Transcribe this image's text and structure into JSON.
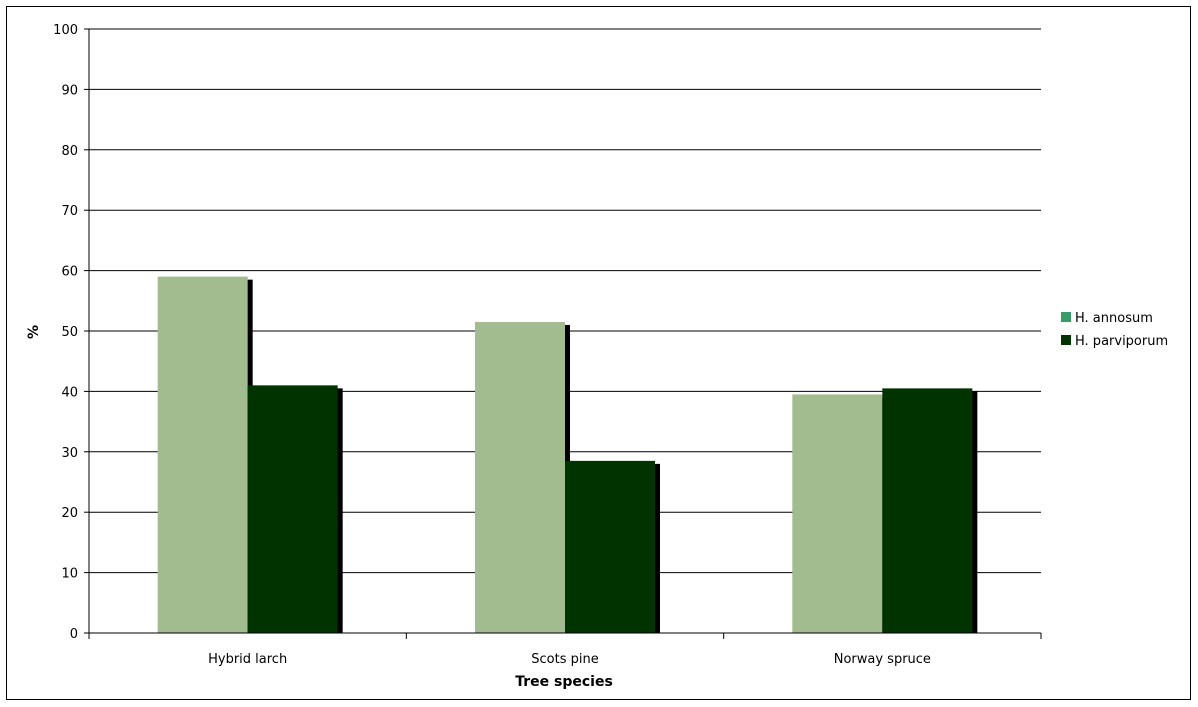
{
  "chart_data": {
    "type": "bar",
    "title": "",
    "xlabel": "Tree species",
    "ylabel": "%",
    "categories": [
      "Hybrid larch",
      "Scots pine",
      "Norway spruce"
    ],
    "series": [
      {
        "name": "H. annosum",
        "values": [
          59,
          51.5,
          39.5
        ],
        "color": "#a2bc8f",
        "legend_color": "#3a9a6a"
      },
      {
        "name": "H. parviporum",
        "values": [
          41,
          28.5,
          40.5
        ],
        "color": "#003300",
        "legend_color": "#003300"
      }
    ],
    "ylim": [
      0,
      100
    ],
    "yticks": [
      0,
      10,
      20,
      30,
      40,
      50,
      60,
      70,
      80,
      90,
      100
    ],
    "grid": true,
    "legend_position": "right"
  }
}
